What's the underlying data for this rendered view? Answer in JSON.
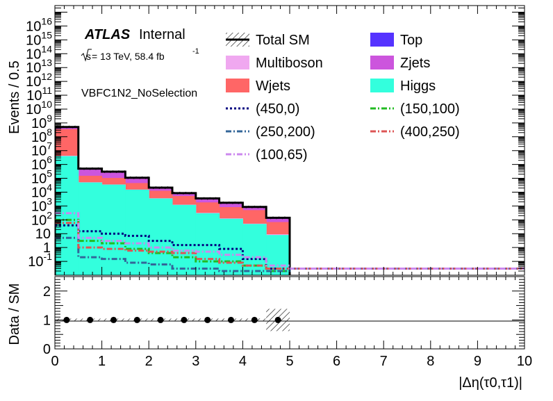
{
  "chart_data": [
    {
      "type": "histogram-stack",
      "bin_edges": [
        0,
        0.5,
        1,
        1.5,
        2,
        2.5,
        3,
        3.5,
        4,
        4.5,
        5,
        5.5,
        6,
        6.5,
        7,
        7.5,
        8,
        8.5,
        9,
        9.5,
        10
      ],
      "xlim": [
        0,
        10
      ],
      "ylim": [
        0.01,
        300000000000000000
      ],
      "yscale": "log",
      "ylabel": "Events / 0.5",
      "y_tick_labels": [
        "10^-1",
        "1",
        "10",
        "10^2",
        "10^3",
        "10^4",
        "10^5",
        "10^6",
        "10^7",
        "10^8",
        "10^9",
        "10^10",
        "10^11",
        "10^12",
        "10^13",
        "10^14",
        "10^15",
        "10^16"
      ],
      "stack": [
        {
          "name": "Higgs",
          "color": "#33ffdd",
          "values": [
            4000000,
            50000,
            35000,
            15000,
            3500,
            1200,
            300,
            120,
            50,
            8,
            0,
            0,
            0,
            0,
            0,
            0,
            0,
            0,
            0,
            0
          ]
        },
        {
          "name": "Multiboson",
          "color": "#f0a8f0",
          "values": [
            300000,
            2000,
            1000,
            500,
            150,
            50,
            20,
            8,
            3,
            1,
            0,
            0,
            0,
            0,
            0,
            0,
            0,
            0,
            0,
            0
          ]
        },
        {
          "name": "Wjets",
          "color": "#ff6666",
          "values": [
            350000000,
            100000,
            70000,
            30000,
            9000,
            4000,
            1500,
            700,
            450,
            60,
            0,
            0,
            0,
            0,
            0,
            0,
            0,
            0,
            0,
            0
          ]
        },
        {
          "name": "Zjets",
          "color": "#cc55dd",
          "values": [
            120000000,
            300000,
            180000,
            60000,
            8000,
            3000,
            1500,
            800,
            250,
            50,
            0,
            0,
            0,
            0,
            0,
            0,
            0,
            0,
            0,
            0
          ]
        },
        {
          "name": "Top",
          "color": "#5533ff",
          "values": [
            40000000,
            50000,
            20000,
            5000,
            700,
            200,
            150,
            70,
            80,
            15,
            0,
            0,
            0,
            0,
            0,
            0,
            0,
            0,
            0,
            0
          ]
        }
      ],
      "total_sm": [
        510000000,
        500000,
        300000,
        110000,
        21000,
        8500,
        3500,
        1700,
        850,
        140,
        0,
        0,
        0,
        0,
        0,
        0,
        0,
        0,
        0,
        0
      ],
      "signals": [
        {
          "name": "(450,0)",
          "color": "#000080",
          "dash": "3,3",
          "values": [
            40,
            15,
            10,
            7,
            3,
            1.5,
            1.5,
            0.8,
            0.15,
            0.03,
            0.03,
            0.03,
            0.03,
            0.03,
            0.03,
            0.03,
            0.03,
            0.03,
            0.03,
            0.03
          ]
        },
        {
          "name": "(150,100)",
          "color": "#22bb22",
          "dash": "8,3,2,3",
          "values": [
            100,
            3,
            2,
            0.8,
            0.4,
            0.2,
            0.1,
            0.1,
            0.05,
            0.02,
            0.03,
            0.03,
            0.03,
            0.03,
            0.03,
            0.03,
            0.03,
            0.03,
            0.03,
            0.03
          ]
        },
        {
          "name": "(250,200)",
          "color": "#336699",
          "dash": "8,3,2,3",
          "values": [
            5,
            0.2,
            0.15,
            0.08,
            0.06,
            0.03,
            0.03,
            0.02,
            0.02,
            0.02,
            0.03,
            0.03,
            0.03,
            0.03,
            0.03,
            0.03,
            0.03,
            0.03,
            0.03,
            0.03
          ]
        },
        {
          "name": "(400,250)",
          "color": "#dd5555",
          "dash": "8,3,2,3",
          "values": [
            60,
            1,
            0.8,
            0.6,
            0.5,
            0.4,
            0.15,
            0.08,
            0.05,
            0.03,
            0.03,
            0.03,
            0.03,
            0.03,
            0.03,
            0.03,
            0.03,
            0.03,
            0.03,
            0.03
          ]
        },
        {
          "name": "(100,65)",
          "color": "#cc88ee",
          "dash": "8,3,2,3",
          "values": [
            300,
            5,
            3,
            2,
            1,
            0.6,
            0.5,
            0.3,
            0.2,
            0.05,
            0.03,
            0.03,
            0.03,
            0.03,
            0.03,
            0.03,
            0.03,
            0.03,
            0.03,
            0.03
          ]
        }
      ],
      "annotations": {
        "atlas": "ATLAS",
        "status": "Internal",
        "energy_prefix": "s",
        "energy": "= 13 TeV, 58.4 fb",
        "lumi_exp": "-1",
        "selection": "VBFC1N2_NoSelection"
      },
      "legend": {
        "placement": "top-right",
        "entries": [
          {
            "label": "Total SM",
            "kind": "hatch",
            "color": "#000000"
          },
          {
            "label": "Top",
            "kind": "fill",
            "color": "#5533ff"
          },
          {
            "label": "Multiboson",
            "kind": "fill",
            "color": "#f0a8f0"
          },
          {
            "label": "Zjets",
            "kind": "fill",
            "color": "#cc55dd"
          },
          {
            "label": "Wjets",
            "kind": "fill",
            "color": "#ff6666"
          },
          {
            "label": "Higgs",
            "kind": "fill",
            "color": "#33ffdd"
          },
          {
            "label": "(450,0)",
            "kind": "line",
            "color": "#000080",
            "dash": "3,3"
          },
          {
            "label": "(150,100)",
            "kind": "line",
            "color": "#22bb22",
            "dash": "8,3,2,3"
          },
          {
            "label": "(250,200)",
            "kind": "line",
            "color": "#336699",
            "dash": "8,3,2,3"
          },
          {
            "label": "(400,250)",
            "kind": "line",
            "color": "#dd5555",
            "dash": "8,3,2,3"
          },
          {
            "label": "(100,65)",
            "kind": "line",
            "color": "#cc88ee",
            "dash": "8,3,2,3"
          }
        ]
      }
    },
    {
      "type": "ratio",
      "ylabel": "Data / SM",
      "xlabel": "|Δη(τ0,τ1)|",
      "xlim": [
        0,
        10
      ],
      "ylim": [
        0,
        2.5
      ],
      "x_ticks": [
        "0",
        "1",
        "2",
        "3",
        "4",
        "5",
        "6",
        "7",
        "8",
        "9",
        "10"
      ],
      "y_ticks": [
        "0",
        "1",
        "2"
      ],
      "points": {
        "x": [
          0.25,
          0.75,
          1.25,
          1.75,
          2.25,
          2.75,
          3.25,
          3.75,
          4.25,
          4.75
        ],
        "y": [
          1,
          1,
          1,
          1,
          1,
          1,
          1,
          1,
          1,
          1
        ]
      },
      "uncertainty_band": {
        "x": [
          0,
          5
        ],
        "half_width": [
          0.002,
          0.002,
          0.003,
          0.004,
          0.006,
          0.01,
          0.015,
          0.02,
          0.05,
          0.3
        ]
      }
    }
  ]
}
